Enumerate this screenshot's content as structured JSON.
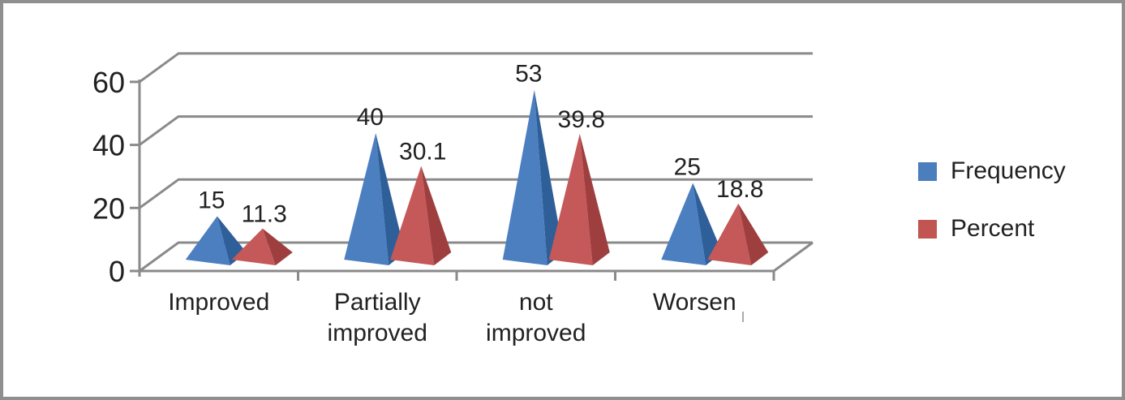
{
  "frame": {
    "background": "#ffffff",
    "border_color": "#8f8f8f"
  },
  "chart_data": {
    "type": "bar",
    "shape": "3d-pyramid",
    "title": "",
    "xlabel": "",
    "ylabel": "",
    "categories": [
      "Improved",
      "Partially improved",
      "not improved",
      "Worsen"
    ],
    "category_label_lines": [
      [
        "Improved"
      ],
      [
        "Partially",
        "improved"
      ],
      [
        "not",
        "improved"
      ],
      [
        "Worsen"
      ]
    ],
    "series": [
      {
        "name": "Frequency",
        "values": [
          15,
          40,
          53,
          25
        ],
        "data_labels": [
          "15",
          "40",
          "53",
          "25"
        ],
        "face_color": "#4b7fc0",
        "side_color": "#2f5f98"
      },
      {
        "name": "Percent",
        "values": [
          11.3,
          30.1,
          39.8,
          18.8
        ],
        "data_labels": [
          "11.3",
          "30.1",
          "39.8",
          "18.8"
        ],
        "face_color": "#c55858",
        "side_color": "#9e3e3e"
      }
    ],
    "y_axis": {
      "ticks": [
        "0",
        "20",
        "40",
        "60"
      ],
      "tick_values": [
        0,
        20,
        40,
        60
      ],
      "range": [
        0,
        60
      ]
    },
    "grid": true,
    "grid_color": "#8a8a8a",
    "text_color": "#212121",
    "legend_position": "right",
    "legend": {
      "items": [
        {
          "label": "Frequency",
          "color": "#4a7ebd"
        },
        {
          "label": "Percent",
          "color": "#c05551"
        }
      ]
    }
  }
}
